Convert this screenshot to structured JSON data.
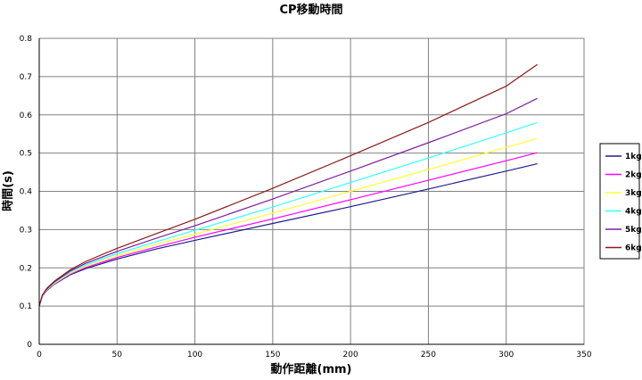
{
  "chart_data": {
    "type": "line",
    "title": "CP移動時間",
    "xlabel": "動作距離(mm)",
    "ylabel": "時間(s)",
    "xlim": [
      0,
      350
    ],
    "ylim": [
      0,
      0.8
    ],
    "xticks": [
      "0",
      "50",
      "100",
      "150",
      "200",
      "250",
      "300",
      "350"
    ],
    "yticks": [
      "0",
      "0.1",
      "0.2",
      "0.3",
      "0.4",
      "0.5",
      "0.6",
      "0.7",
      "0.8"
    ],
    "grid": true,
    "legend_position": "right",
    "x": [
      0,
      2,
      5,
      10,
      20,
      30,
      50,
      75,
      100,
      150,
      200,
      250,
      300,
      320
    ],
    "series": [
      {
        "name": "1kg",
        "color": "#1f1f8f",
        "values": [
          0.1,
          0.126,
          0.141,
          0.158,
          0.182,
          0.198,
          0.223,
          0.249,
          0.272,
          0.316,
          0.36,
          0.406,
          0.453,
          0.472
        ]
      },
      {
        "name": "2kg",
        "color": "#ff00ff",
        "values": [
          0.1,
          0.126,
          0.142,
          0.159,
          0.184,
          0.201,
          0.227,
          0.254,
          0.28,
          0.328,
          0.378,
          0.429,
          0.48,
          0.501
        ]
      },
      {
        "name": "3kg",
        "color": "#ffff33",
        "values": [
          0.1,
          0.127,
          0.143,
          0.16,
          0.186,
          0.204,
          0.231,
          0.261,
          0.288,
          0.343,
          0.4,
          0.457,
          0.515,
          0.538
        ]
      },
      {
        "name": "4kg",
        "color": "#33ffff",
        "values": [
          0.1,
          0.127,
          0.144,
          0.162,
          0.189,
          0.208,
          0.237,
          0.268,
          0.298,
          0.359,
          0.423,
          0.487,
          0.553,
          0.58
        ]
      },
      {
        "name": "5kg",
        "color": "#7f1f9f",
        "values": [
          0.1,
          0.128,
          0.145,
          0.164,
          0.192,
          0.212,
          0.243,
          0.277,
          0.31,
          0.38,
          0.453,
          0.527,
          0.603,
          0.643
        ]
      },
      {
        "name": "6kg",
        "color": "#8b1a1a",
        "values": [
          0.1,
          0.129,
          0.147,
          0.166,
          0.195,
          0.217,
          0.251,
          0.289,
          0.327,
          0.408,
          0.493,
          0.58,
          0.675,
          0.732
        ]
      }
    ]
  }
}
